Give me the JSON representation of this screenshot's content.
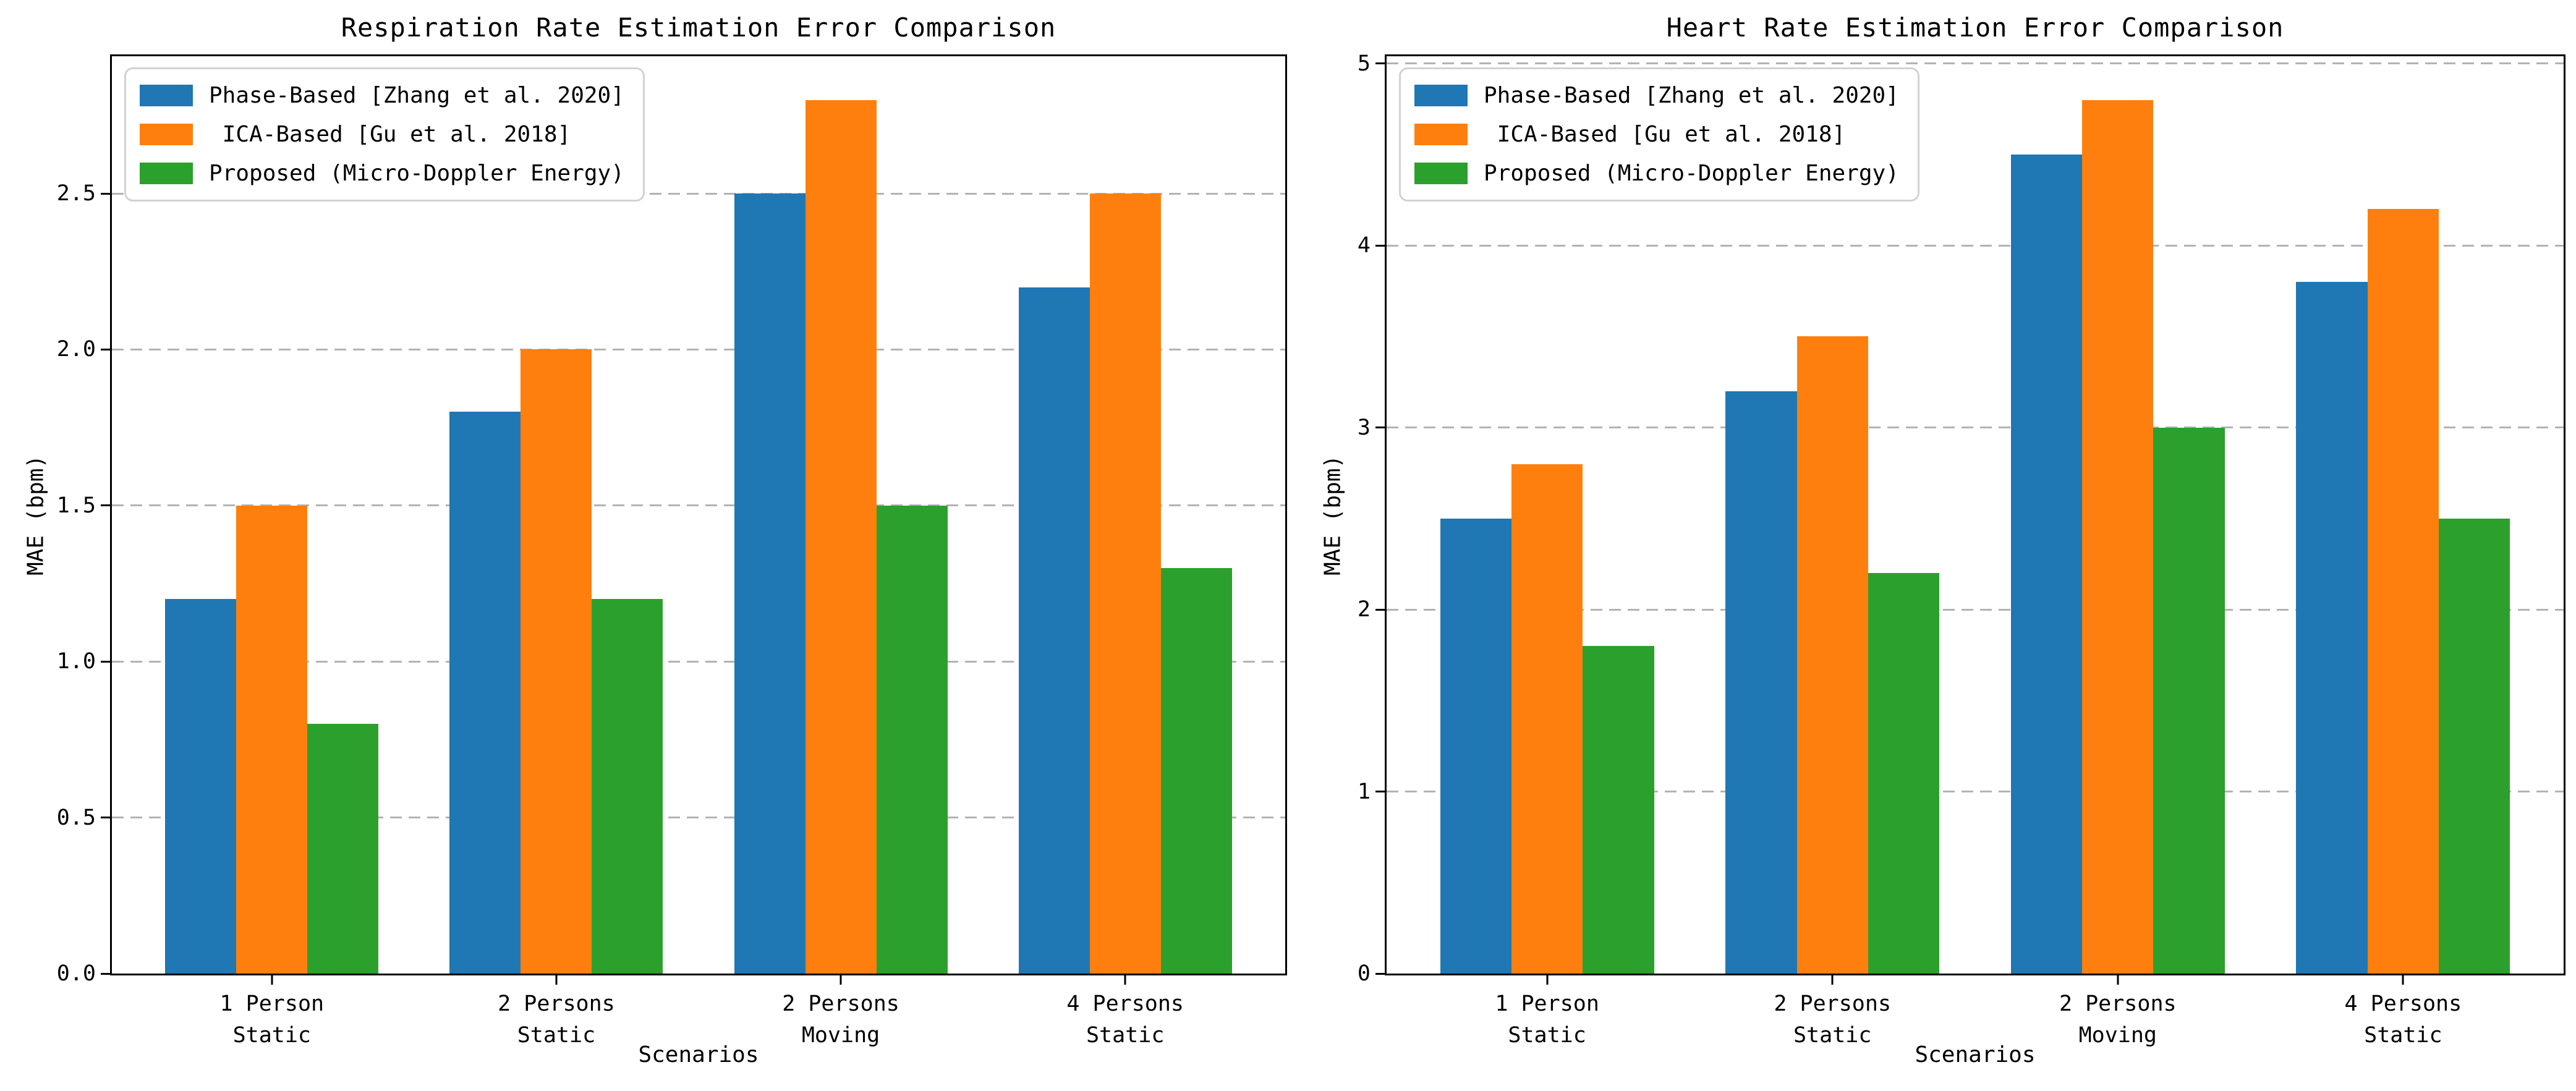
{
  "colors": {
    "phase_based": "#1f77b4",
    "ica_based": "#ff7f0e",
    "proposed": "#2ca02c",
    "grid": "#b3b3b3",
    "spine": "#000000",
    "legend_border": "#d2d2d2",
    "background": "#ffffff"
  },
  "chart_data": [
    {
      "type": "bar",
      "title": "Respiration Rate Estimation Error Comparison",
      "xlabel": "Scenarios",
      "ylabel": "MAE (bpm)",
      "categories": [
        "1 Person\nStatic",
        "2 Persons\nStatic",
        "2 Persons\nMoving",
        "4 Persons\nStatic"
      ],
      "series": [
        {
          "name": "Phase-Based [Zhang et al. 2020]",
          "color": "#1f77b4",
          "values": [
            1.2,
            1.8,
            2.5,
            2.2
          ]
        },
        {
          "name": " ICA-Based [Gu et al. 2018]",
          "color": "#ff7f0e",
          "values": [
            1.5,
            2.0,
            2.8,
            2.5
          ]
        },
        {
          "name": "Proposed (Micro-Doppler Energy)",
          "color": "#2ca02c",
          "values": [
            0.8,
            1.2,
            1.5,
            1.3
          ]
        }
      ],
      "ylim": [
        0,
        2.94
      ],
      "yticks": [
        "0.0",
        "0.5",
        "1.0",
        "1.5",
        "2.0",
        "2.5"
      ],
      "grid": "horizontal-dashed",
      "legend_position": "upper-left"
    },
    {
      "type": "bar",
      "title": "Heart Rate Estimation Error Comparison",
      "xlabel": "Scenarios",
      "ylabel": "MAE (bpm)",
      "categories": [
        "1 Person\nStatic",
        "2 Persons\nStatic",
        "2 Persons\nMoving",
        "4 Persons\nStatic"
      ],
      "series": [
        {
          "name": "Phase-Based [Zhang et al. 2020]",
          "color": "#1f77b4",
          "values": [
            2.5,
            3.2,
            4.5,
            3.8
          ]
        },
        {
          "name": " ICA-Based [Gu et al. 2018]",
          "color": "#ff7f0e",
          "values": [
            2.8,
            3.5,
            4.8,
            4.2
          ]
        },
        {
          "name": "Proposed (Micro-Doppler Energy)",
          "color": "#2ca02c",
          "values": [
            1.8,
            2.2,
            3.0,
            2.5
          ]
        }
      ],
      "ylim": [
        0,
        5.04
      ],
      "yticks": [
        "0",
        "1",
        "2",
        "3",
        "4",
        "5"
      ],
      "grid": "horizontal-dashed",
      "legend_position": "upper-left"
    }
  ]
}
